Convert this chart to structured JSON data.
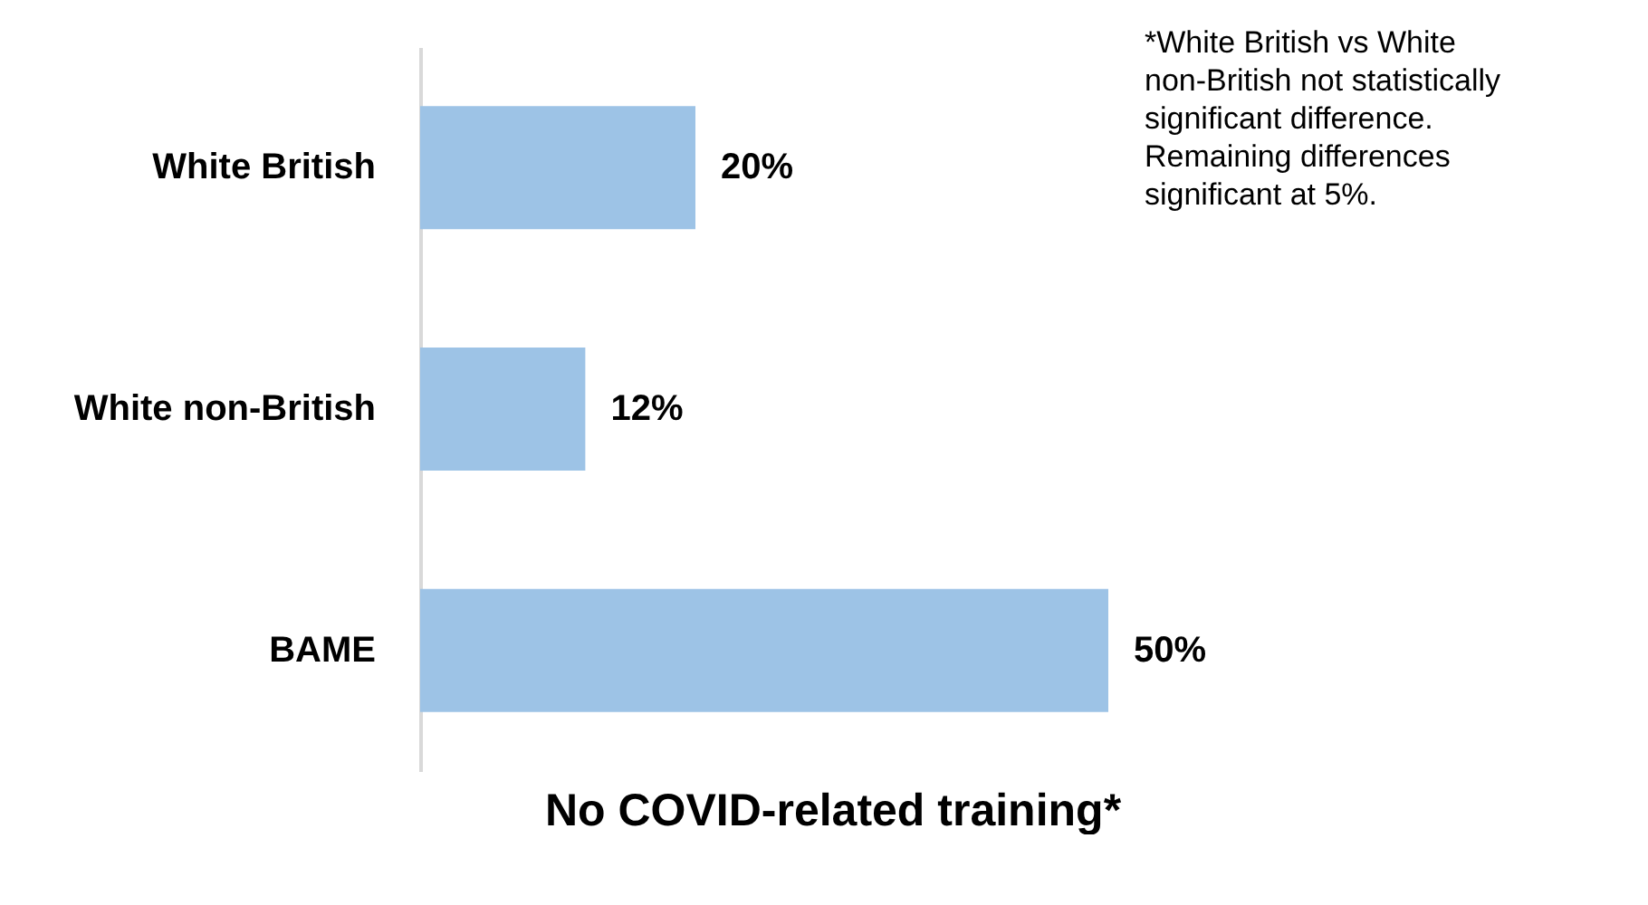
{
  "chart_data": {
    "type": "bar",
    "orientation": "horizontal",
    "xlabel": "No COVID-related training*",
    "categories": [
      "White British",
      "White non-British",
      "BAME"
    ],
    "values": [
      20,
      12,
      50
    ],
    "color": "#9dc3e6",
    "value_labels": [
      "20%",
      "12%",
      "50%"
    ],
    "tick_labels": "y",
    "grid": false,
    "annotations": [
      "*White British vs White non-British not statistically significant difference. Remaining differences significant at 5%."
    ]
  }
}
